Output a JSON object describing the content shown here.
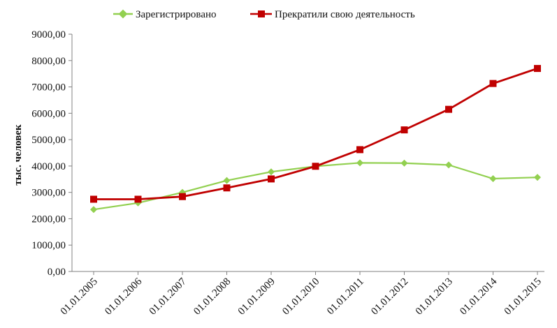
{
  "chart_data": {
    "type": "line",
    "categories": [
      "01.01.2005",
      "01.01.2006",
      "01.01.2007",
      "01.01.2008",
      "01.01.2009",
      "01.01.2010",
      "01.01.2011",
      "01.01.2012",
      "01.01.2013",
      "01.01.2014",
      "01.01.2015"
    ],
    "series": [
      {
        "name": "Зарегистрировано",
        "color": "#92d050",
        "marker": "diamond",
        "values": [
          2350,
          2600,
          3000,
          3450,
          3780,
          3990,
          4120,
          4110,
          4040,
          3520,
          3570
        ]
      },
      {
        "name": "Прекратили свою деятельность",
        "color": "#c00000",
        "marker": "square",
        "values": [
          2740,
          2740,
          2840,
          3170,
          3510,
          3990,
          4620,
          5370,
          6150,
          7130,
          7700
        ]
      }
    ],
    "ylabel": "тыс. человек",
    "xlabel": "",
    "ylim": [
      0,
      9000
    ],
    "y_ticks": [
      "0,00",
      "1000,00",
      "2000,00",
      "3000,00",
      "4000,00",
      "5000,00",
      "6000,00",
      "7000,00",
      "8000,00",
      "9000,00"
    ],
    "legend_position": "top",
    "grid": false
  }
}
